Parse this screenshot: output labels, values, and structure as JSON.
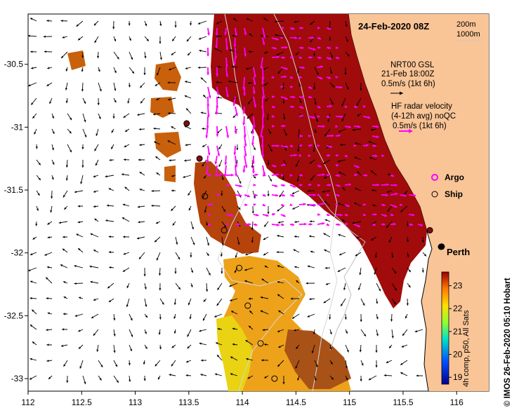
{
  "map": {
    "date_title": "24-Feb-2020 08Z",
    "depth_labels": [
      "200m",
      "1000m"
    ],
    "gsl_legend": {
      "line1": "NRT00 GSL",
      "line2": "21-Feb 18:00Z",
      "line3": "0.5m/s (1kt 6h)"
    },
    "hf_legend": {
      "line1": "HF radar velocity",
      "line2": "(4-12h avg) noQC",
      "line3": "0.5m/s (1kt 6h)"
    },
    "argo_label": "Argo",
    "ship_label": "Ship",
    "city_label": "Perth",
    "colorbar_label": "4h comp, p50, All Sats",
    "credit": "© IMOS 26-Feb-2020 05:10 Hobart",
    "colors": {
      "land": "#f9c496",
      "hot": "#a10b0b",
      "warm": "#c8600c",
      "mid": "#eda21a",
      "cool": "#e9d312",
      "argo": "#ff00ff",
      "ship": "#000000"
    }
  },
  "chart_data": {
    "type": "map",
    "x_ticks": [
      "112",
      "112.5",
      "113",
      "113.5",
      "114",
      "114.5",
      "115",
      "115.5",
      "116"
    ],
    "y_ticks": [
      "-30.5",
      "-31",
      "-31.5",
      "-32",
      "-32.5",
      "-33"
    ],
    "xlim": [
      112,
      116.3
    ],
    "ylim": [
      -33.1,
      -30.1
    ],
    "colorbar": {
      "min": 18.7,
      "max": 23.6,
      "ticks": [
        "19",
        "20",
        "21",
        "22",
        "23"
      ]
    },
    "ship_positions": [
      {
        "lon": 113.65,
        "lat": -31.55
      },
      {
        "lon": 113.83,
        "lat": -31.82
      },
      {
        "lon": 113.97,
        "lat": -32.12
      },
      {
        "lon": 114.05,
        "lat": -32.42
      },
      {
        "lon": 114.17,
        "lat": -32.72
      },
      {
        "lon": 114.3,
        "lat": -33.0
      }
    ],
    "dark_ship_positions": [
      {
        "lon": 113.48,
        "lat": -30.97
      },
      {
        "lon": 113.6,
        "lat": -31.25
      },
      {
        "lon": 115.75,
        "lat": -31.82
      },
      {
        "lon": 115.86,
        "lat": -31.95
      }
    ]
  }
}
